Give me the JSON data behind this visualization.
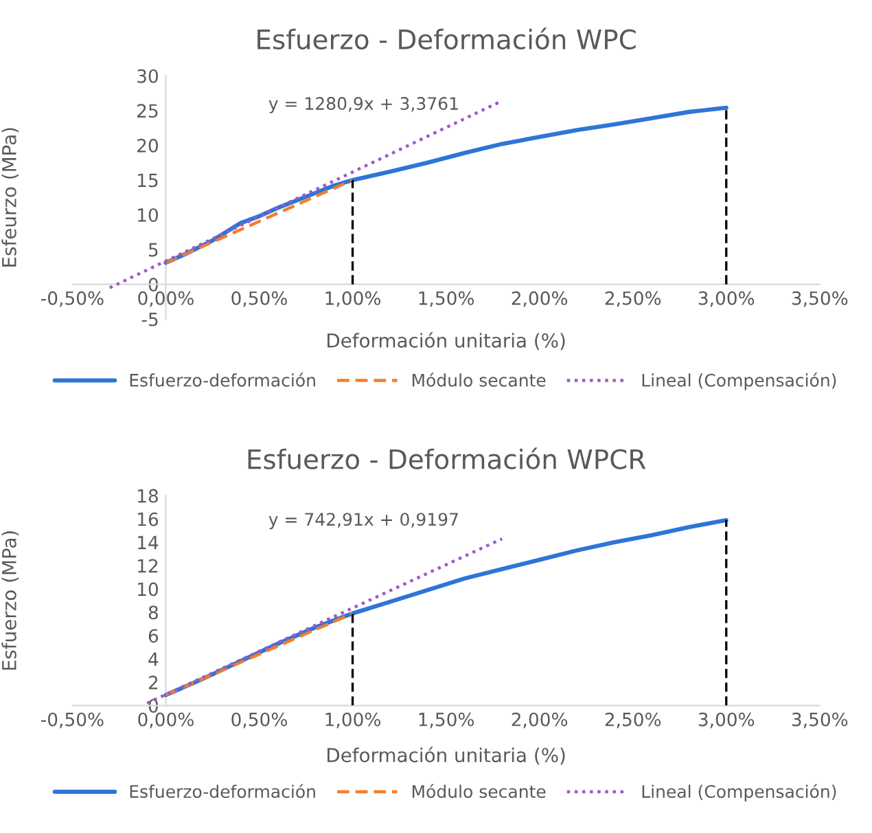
{
  "chart_data": [
    {
      "type": "line",
      "title": "Esfuerzo - Deformación WPC",
      "xlabel": "Deformación unitaria (%)",
      "ylabel": "Esfeurzo (MPa)",
      "xlim": [
        -0.5,
        3.5
      ],
      "xticks": [
        {
          "value": -0.5,
          "label": "-0,50%"
        },
        {
          "value": 0,
          "label": "0,00%"
        },
        {
          "value": 0.5,
          "label": "0,50%"
        },
        {
          "value": 1,
          "label": "1,00%"
        },
        {
          "value": 1.5,
          "label": "1,50%"
        },
        {
          "value": 2,
          "label": "2,00%"
        },
        {
          "value": 2.5,
          "label": "2,50%"
        },
        {
          "value": 3,
          "label": "3,00%"
        },
        {
          "value": 3.5,
          "label": "3,50%"
        }
      ],
      "ylim": [
        -5,
        30
      ],
      "yticks": [
        -5,
        0,
        5,
        10,
        15,
        20,
        25,
        30
      ],
      "grid": false,
      "legend": "bottom",
      "series": [
        {
          "name": "Esfuerzo-deformación",
          "color": "#2e75d6",
          "line_style": "solid",
          "x": [
            0,
            0.1,
            0.25,
            0.4,
            0.5,
            0.6,
            0.75,
            0.9,
            1.0,
            1.2,
            1.4,
            1.6,
            1.8,
            2.0,
            2.2,
            2.4,
            2.6,
            2.8,
            3.0
          ],
          "values": [
            3.1,
            4.3,
            6.3,
            8.8,
            9.8,
            11,
            12.6,
            14.2,
            15,
            16.2,
            17.5,
            18.9,
            20.2,
            21.2,
            22.2,
            23,
            23.9,
            24.8,
            25.4
          ]
        },
        {
          "name": "Módulo secante",
          "color": "#f47e2a",
          "line_style": "dashed",
          "x": [
            0,
            1
          ],
          "values": [
            3.1,
            15
          ]
        },
        {
          "name": "Lineal (Compensación)",
          "color": "#9e58c8",
          "line_style": "dotted",
          "x": [
            -0.3,
            1.8
          ],
          "values": [
            -0.5,
            26.4
          ]
        }
      ],
      "ref_lines": [
        {
          "axis": "x",
          "value": 1,
          "color": "#000000",
          "line_style": "dashed"
        },
        {
          "axis": "x",
          "value": 3,
          "color": "#000000",
          "line_style": "dashed"
        }
      ],
      "annotations": [
        "y = 1280,9x + 3,3761"
      ]
    },
    {
      "type": "line",
      "title": "Esfuerzo - Deformación WPCR",
      "xlabel": "Deformación unitaria (%)",
      "ylabel": "Esfuerzo (MPa)",
      "xlim": [
        -0.5,
        3.5
      ],
      "xticks": [
        {
          "value": -0.5,
          "label": "-0,50%"
        },
        {
          "value": 0,
          "label": "0,00%"
        },
        {
          "value": 0.5,
          "label": "0,50%"
        },
        {
          "value": 1,
          "label": "1,00%"
        },
        {
          "value": 1.5,
          "label": "1,50%"
        },
        {
          "value": 2,
          "label": "2,00%"
        },
        {
          "value": 2.5,
          "label": "2,50%"
        },
        {
          "value": 3,
          "label": "3,00%"
        },
        {
          "value": 3.5,
          "label": "3,50%"
        }
      ],
      "ylim": [
        0,
        18
      ],
      "yticks": [
        0,
        2,
        4,
        6,
        8,
        10,
        12,
        14,
        16,
        18
      ],
      "grid": false,
      "legend": "bottom",
      "series": [
        {
          "name": "Esfuerzo-deformación",
          "color": "#2e75d6",
          "line_style": "solid",
          "x": [
            0,
            0.2,
            0.4,
            0.6,
            0.8,
            1.0,
            1.2,
            1.4,
            1.6,
            1.8,
            2.0,
            2.2,
            2.4,
            2.6,
            2.8,
            3.0
          ],
          "values": [
            0.9,
            2.3,
            3.8,
            5.3,
            6.7,
            7.9,
            8.9,
            9.9,
            10.9,
            11.7,
            12.5,
            13.3,
            14.0,
            14.6,
            15.3,
            15.9
          ]
        },
        {
          "name": "Módulo secante",
          "color": "#f47e2a",
          "line_style": "dashed",
          "x": [
            0,
            1
          ],
          "values": [
            0.9,
            7.9
          ]
        },
        {
          "name": "Lineal (Compensación)",
          "color": "#9e58c8",
          "line_style": "dotted",
          "x": [
            -0.1,
            1.8
          ],
          "values": [
            0.2,
            14.3
          ]
        }
      ],
      "ref_lines": [
        {
          "axis": "x",
          "value": 1,
          "color": "#000000",
          "line_style": "dashed"
        },
        {
          "axis": "x",
          "value": 3,
          "color": "#000000",
          "line_style": "dashed"
        }
      ],
      "annotations": [
        "y = 742,91x + 0,9197"
      ]
    }
  ]
}
